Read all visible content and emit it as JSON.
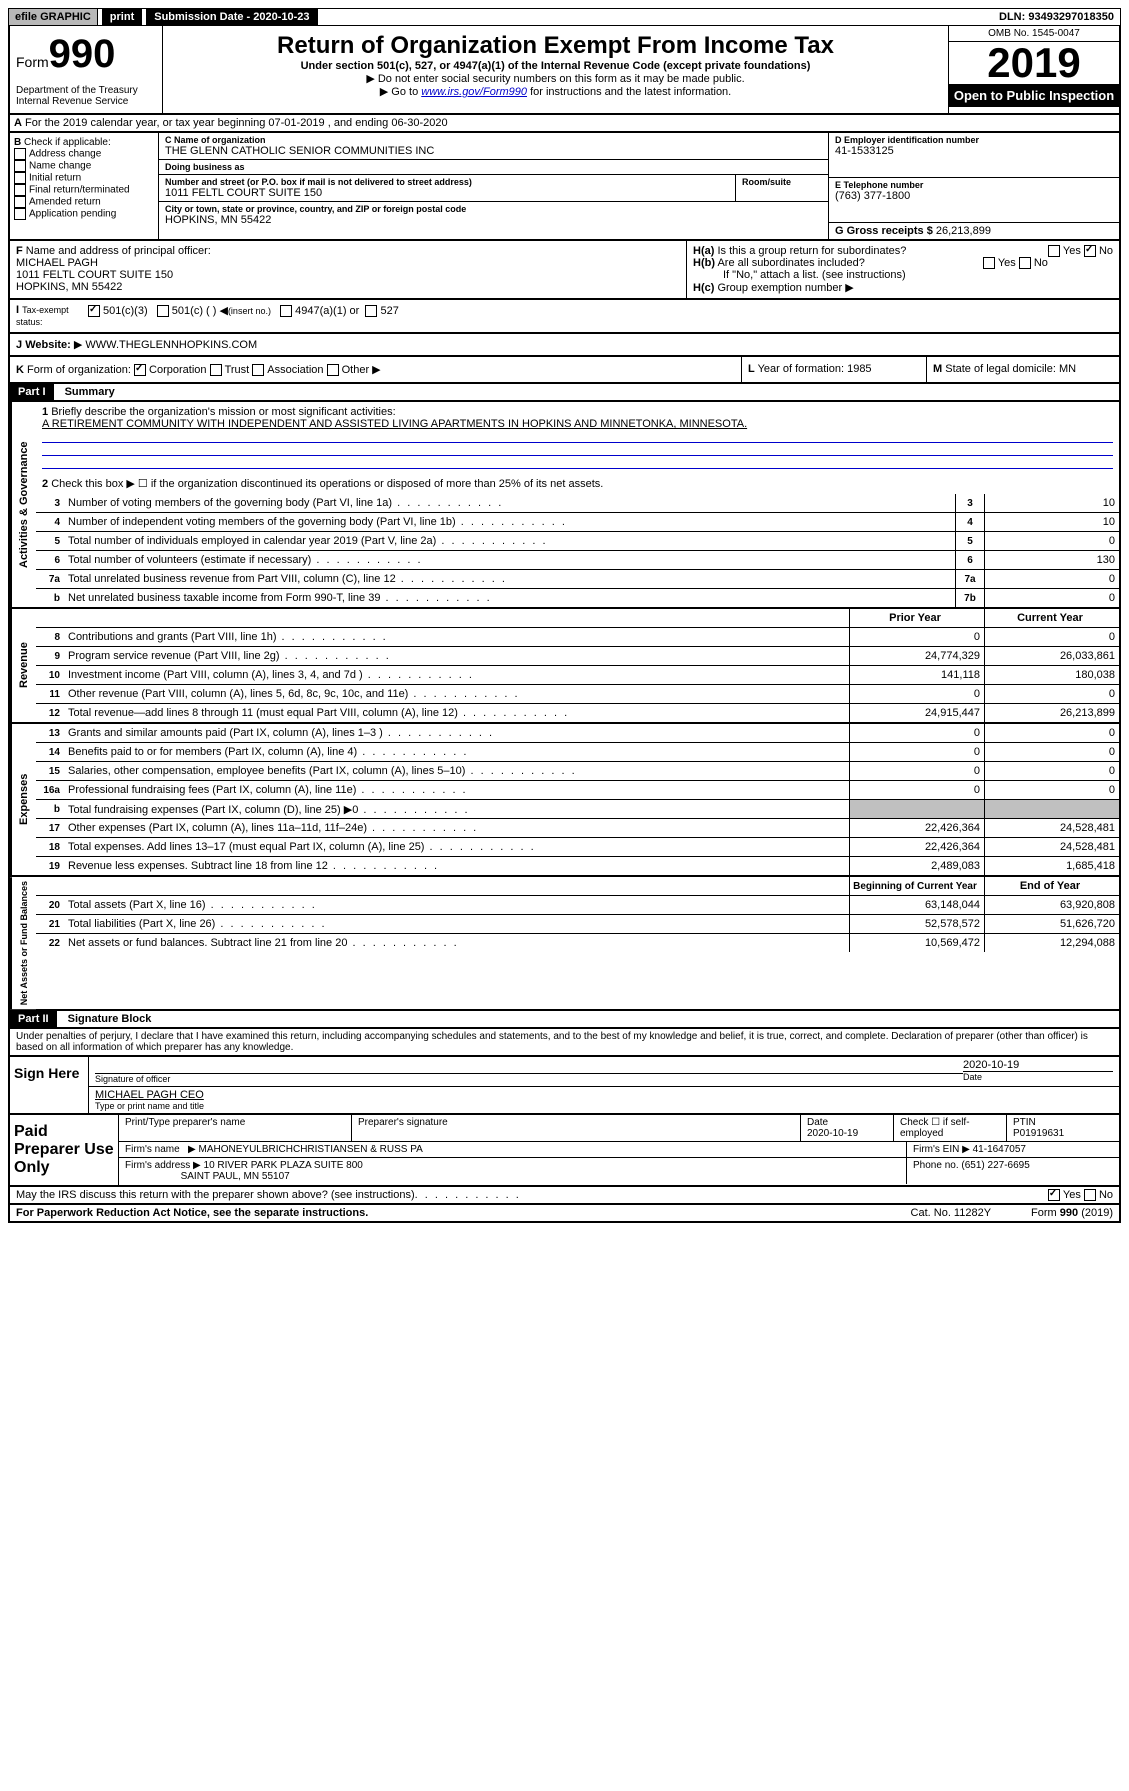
{
  "topbar": {
    "efile": "efile GRAPHIC",
    "print": "print",
    "submission_label": "Submission Date - 2020-10-23",
    "dln": "DLN: 93493297018350"
  },
  "header": {
    "form_prefix": "Form",
    "form_number": "990",
    "dept": "Department of the Treasury\nInternal Revenue Service",
    "title": "Return of Organization Exempt From Income Tax",
    "subtitle": "Under section 501(c), 527, or 4947(a)(1) of the Internal Revenue Code (except private foundations)",
    "note1": "Do not enter social security numbers on this form as it may be made public.",
    "note2_prefix": "Go to ",
    "note2_link": "www.irs.gov/Form990",
    "note2_suffix": " for instructions and the latest information.",
    "omb": "OMB No. 1545-0047",
    "year": "2019",
    "open": "Open to Public Inspection"
  },
  "section_a": {
    "text": "For the 2019 calendar year, or tax year beginning 07-01-2019    , and ending 06-30-2020"
  },
  "box_b": {
    "label": "Check if applicable:",
    "items": [
      "Address change",
      "Name change",
      "Initial return",
      "Final return/terminated",
      "Amended return",
      "Application pending"
    ]
  },
  "box_c": {
    "name_label": "Name of organization",
    "name": "THE GLENN CATHOLIC SENIOR COMMUNITIES INC",
    "dba_label": "Doing business as",
    "addr_label": "Number and street (or P.O. box if mail is not delivered to street address)",
    "room_label": "Room/suite",
    "addr": "1011 FELTL COURT SUITE 150",
    "city_label": "City or town, state or province, country, and ZIP or foreign postal code",
    "city": "HOPKINS, MN  55422"
  },
  "box_d": {
    "label": "D Employer identification number",
    "value": "41-1533125"
  },
  "box_e": {
    "label": "E Telephone number",
    "value": "(763) 377-1800"
  },
  "box_g": {
    "label": "G Gross receipts $",
    "value": "26,213,899"
  },
  "box_f": {
    "label": "Name and address of principal officer:",
    "name": "MICHAEL PAGH",
    "addr1": "1011 FELTL COURT SUITE 150",
    "addr2": "HOPKINS, MN  55422"
  },
  "box_h": {
    "a": "Is this a group return for subordinates?",
    "b": "Are all subordinates included?",
    "b_note": "If \"No,\" attach a list. (see instructions)",
    "c": "Group exemption number"
  },
  "box_i": {
    "label": "Tax-exempt status:",
    "opt1": "501(c)(3)",
    "opt2": "501(c) (   )",
    "opt2_note": "(insert no.)",
    "opt3": "4947(a)(1) or",
    "opt4": "527"
  },
  "box_j": {
    "label": "Website:",
    "value": "WWW.THEGLENNHOPKINS.COM"
  },
  "box_k": {
    "label": "Form of organization:",
    "opts": [
      "Corporation",
      "Trust",
      "Association",
      "Other"
    ]
  },
  "box_l": {
    "label": "Year of formation:",
    "value": "1985"
  },
  "box_m": {
    "label": "State of legal domicile:",
    "value": "MN"
  },
  "part1": {
    "header": "Part I",
    "title": "Summary"
  },
  "summary": {
    "q1": "Briefly describe the organization's mission or most significant activities:",
    "q1_ans": "A RETIREMENT COMMUNITY WITH INDEPENDENT AND ASSISTED LIVING APARTMENTS IN HOPKINS AND MINNETONKA, MINNESOTA.",
    "q2": "Check this box ▶ ☐  if the organization discontinued its operations or disposed of more than 25% of its net assets.",
    "lines": [
      {
        "n": "3",
        "t": "Number of voting members of the governing body (Part VI, line 1a)",
        "c": "3",
        "v": "10"
      },
      {
        "n": "4",
        "t": "Number of independent voting members of the governing body (Part VI, line 1b)",
        "c": "4",
        "v": "10"
      },
      {
        "n": "5",
        "t": "Total number of individuals employed in calendar year 2019 (Part V, line 2a)",
        "c": "5",
        "v": "0"
      },
      {
        "n": "6",
        "t": "Total number of volunteers (estimate if necessary)",
        "c": "6",
        "v": "130"
      },
      {
        "n": "7a",
        "t": "Total unrelated business revenue from Part VIII, column (C), line 12",
        "c": "7a",
        "v": "0"
      },
      {
        "n": "b",
        "t": "Net unrelated business taxable income from Form 990-T, line 39",
        "c": "7b",
        "v": "0"
      }
    ],
    "prior_year": "Prior Year",
    "current_year": "Current Year",
    "beg_year": "Beginning of Current Year",
    "end_year": "End of Year"
  },
  "revenue": [
    {
      "n": "8",
      "t": "Contributions and grants (Part VIII, line 1h)",
      "p": "0",
      "c": "0"
    },
    {
      "n": "9",
      "t": "Program service revenue (Part VIII, line 2g)",
      "p": "24,774,329",
      "c": "26,033,861"
    },
    {
      "n": "10",
      "t": "Investment income (Part VIII, column (A), lines 3, 4, and 7d )",
      "p": "141,118",
      "c": "180,038"
    },
    {
      "n": "11",
      "t": "Other revenue (Part VIII, column (A), lines 5, 6d, 8c, 9c, 10c, and 11e)",
      "p": "0",
      "c": "0"
    },
    {
      "n": "12",
      "t": "Total revenue—add lines 8 through 11 (must equal Part VIII, column (A), line 12)",
      "p": "24,915,447",
      "c": "26,213,899"
    }
  ],
  "expenses": [
    {
      "n": "13",
      "t": "Grants and similar amounts paid (Part IX, column (A), lines 1–3 )",
      "p": "0",
      "c": "0"
    },
    {
      "n": "14",
      "t": "Benefits paid to or for members (Part IX, column (A), line 4)",
      "p": "0",
      "c": "0"
    },
    {
      "n": "15",
      "t": "Salaries, other compensation, employee benefits (Part IX, column (A), lines 5–10)",
      "p": "0",
      "c": "0"
    },
    {
      "n": "16a",
      "t": "Professional fundraising fees (Part IX, column (A), line 11e)",
      "p": "0",
      "c": "0"
    },
    {
      "n": "b",
      "t": "Total fundraising expenses (Part IX, column (D), line 25) ▶0",
      "p": "",
      "c": ""
    },
    {
      "n": "17",
      "t": "Other expenses (Part IX, column (A), lines 11a–11d, 11f–24e)",
      "p": "22,426,364",
      "c": "24,528,481"
    },
    {
      "n": "18",
      "t": "Total expenses. Add lines 13–17 (must equal Part IX, column (A), line 25)",
      "p": "22,426,364",
      "c": "24,528,481"
    },
    {
      "n": "19",
      "t": "Revenue less expenses. Subtract line 18 from line 12",
      "p": "2,489,083",
      "c": "1,685,418"
    }
  ],
  "netassets": [
    {
      "n": "20",
      "t": "Total assets (Part X, line 16)",
      "p": "63,148,044",
      "c": "63,920,808"
    },
    {
      "n": "21",
      "t": "Total liabilities (Part X, line 26)",
      "p": "52,578,572",
      "c": "51,626,720"
    },
    {
      "n": "22",
      "t": "Net assets or fund balances. Subtract line 21 from line 20",
      "p": "10,569,472",
      "c": "12,294,088"
    }
  ],
  "vert_labels": {
    "gov": "Activities & Governance",
    "rev": "Revenue",
    "exp": "Expenses",
    "net": "Net Assets or Fund Balances"
  },
  "part2": {
    "header": "Part II",
    "title": "Signature Block",
    "perjury": "Under penalties of perjury, I declare that I have examined this return, including accompanying schedules and statements, and to the best of my knowledge and belief, it is true, correct, and complete. Declaration of preparer (other than officer) is based on all information of which preparer has any knowledge."
  },
  "sign": {
    "label": "Sign Here",
    "sig_officer": "Signature of officer",
    "date": "2020-10-19",
    "date_label": "Date",
    "name": "MICHAEL PAGH CEO",
    "name_label": "Type or print name and title"
  },
  "preparer": {
    "label": "Paid Preparer Use Only",
    "col1": "Print/Type preparer's name",
    "col2": "Preparer's signature",
    "col3": "Date",
    "date": "2020-10-19",
    "col4_label": "Check ☐ if self-employed",
    "col5_label": "PTIN",
    "ptin": "P01919631",
    "firm_name_label": "Firm's name",
    "firm_name": "MAHONEYULBRICHCHRISTIANSEN & RUSS PA",
    "firm_ein_label": "Firm's EIN",
    "firm_ein": "41-1647057",
    "firm_addr_label": "Firm's address",
    "firm_addr1": "10 RIVER PARK PLAZA SUITE 800",
    "firm_addr2": "SAINT PAUL, MN  55107",
    "phone_label": "Phone no.",
    "phone": "(651) 227-6695"
  },
  "discuss": {
    "text": "May the IRS discuss this return with the preparer shown above? (see instructions)",
    "yes": "Yes",
    "no": "No"
  },
  "footer": {
    "left": "For Paperwork Reduction Act Notice, see the separate instructions.",
    "mid": "Cat. No. 11282Y",
    "right": "Form 990 (2019)"
  }
}
